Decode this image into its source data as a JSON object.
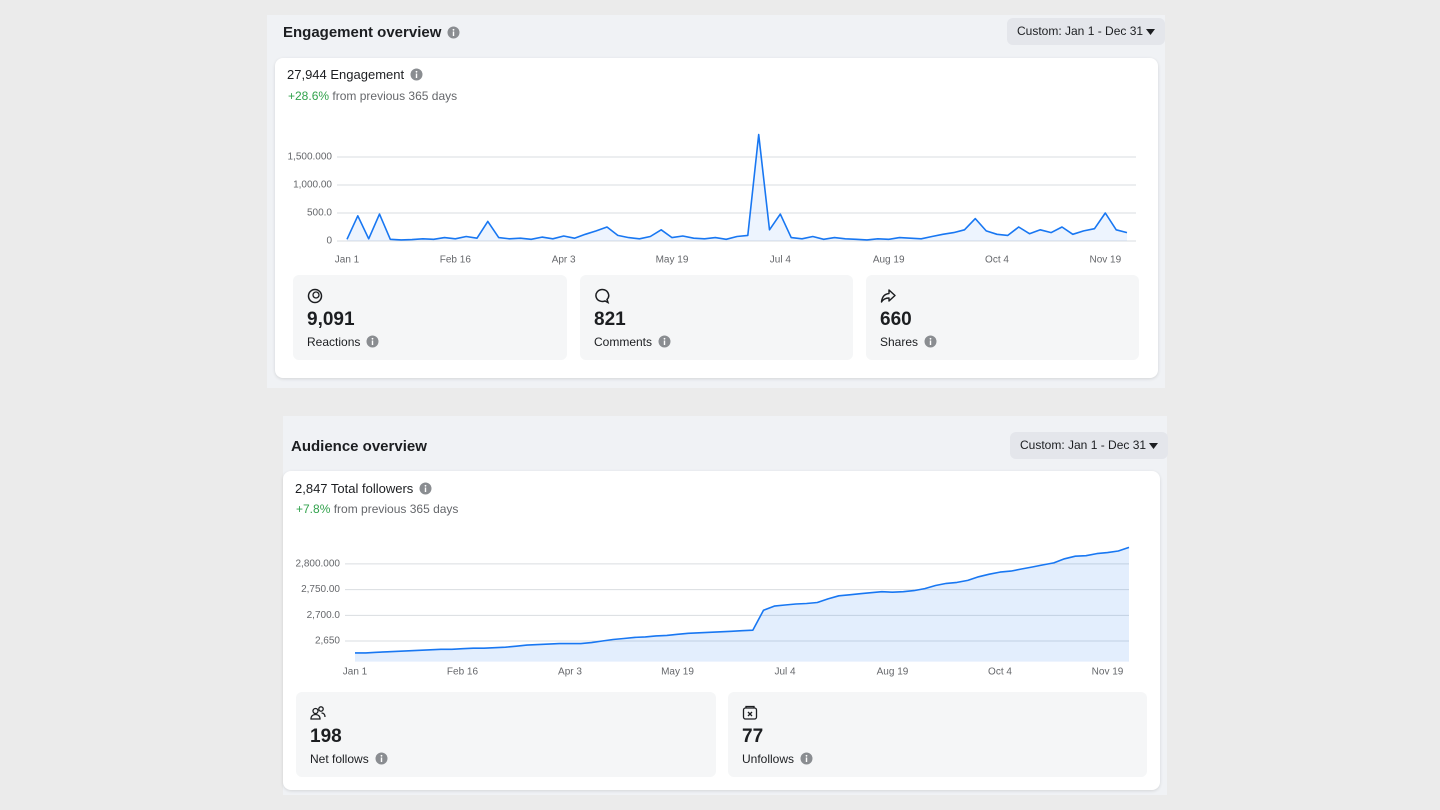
{
  "engagement": {
    "title": "Engagement overview",
    "range_button": "Custom: Jan 1 - Dec 31",
    "total": "27,944 Engagement",
    "change": "+28.6%",
    "change_text": "from previous 365 days",
    "chart": {
      "type": "line",
      "color": "#1877f2",
      "categories": [
        "Jan 1",
        null,
        null,
        null,
        null,
        null,
        null,
        null,
        null,
        null,
        "Feb 16",
        null,
        null,
        null,
        null,
        null,
        null,
        null,
        null,
        null,
        "Apr 3",
        null,
        null,
        null,
        null,
        null,
        null,
        null,
        null,
        null,
        "May 19",
        null,
        null,
        null,
        null,
        null,
        null,
        null,
        null,
        null,
        "Jul 4",
        null,
        null,
        null,
        null,
        null,
        null,
        null,
        null,
        null,
        "Aug 19",
        null,
        null,
        null,
        null,
        null,
        null,
        null,
        null,
        null,
        "Oct 4",
        null,
        null,
        null,
        null,
        null,
        null,
        null,
        null,
        null,
        "Nov 19",
        null,
        null
      ],
      "values": [
        30,
        450,
        40,
        480,
        30,
        20,
        25,
        40,
        30,
        60,
        40,
        80,
        50,
        350,
        60,
        40,
        50,
        30,
        70,
        40,
        90,
        50,
        120,
        180,
        250,
        100,
        60,
        40,
        80,
        200,
        60,
        90,
        50,
        40,
        60,
        30,
        80,
        100,
        1900,
        200,
        480,
        60,
        40,
        80,
        30,
        60,
        40,
        30,
        20,
        40,
        30,
        60,
        50,
        40,
        80,
        120,
        150,
        200,
        400,
        180,
        120,
        100,
        250,
        130,
        200,
        150,
        250,
        120,
        180,
        220,
        500,
        200,
        150
      ],
      "ylim": [
        0,
        2000
      ],
      "yticks": [
        0,
        {
          "value": 500,
          "label": "500.0"
        },
        {
          "value": 1000,
          "label": "1,000.00"
        },
        {
          "value": 1500,
          "label": "1,500.000"
        }
      ],
      "grid": true
    },
    "metrics": [
      {
        "value": "9,091",
        "label": "Reactions"
      },
      {
        "value": "821",
        "label": "Comments"
      },
      {
        "value": "660",
        "label": "Shares"
      }
    ]
  },
  "audience": {
    "title": "Audience overview",
    "range_button": "Custom: Jan 1 - Dec 31",
    "total": "2,847 Total followers",
    "change": "+7.8%",
    "change_text": "from previous 365 days",
    "chart": {
      "type": "area",
      "color": "#1877f2",
      "categories": [
        "Jan 1",
        null,
        null,
        null,
        null,
        null,
        null,
        null,
        null,
        null,
        "Feb 16",
        null,
        null,
        null,
        null,
        null,
        null,
        null,
        null,
        null,
        "Apr 3",
        null,
        null,
        null,
        null,
        null,
        null,
        null,
        null,
        null,
        "May 19",
        null,
        null,
        null,
        null,
        null,
        null,
        null,
        null,
        null,
        "Jul 4",
        null,
        null,
        null,
        null,
        null,
        null,
        null,
        null,
        null,
        "Aug 19",
        null,
        null,
        null,
        null,
        null,
        null,
        null,
        null,
        null,
        "Oct 4",
        null,
        null,
        null,
        null,
        null,
        null,
        null,
        null,
        null,
        "Nov 19",
        null,
        null
      ],
      "values": [
        2627,
        2627,
        2628,
        2629,
        2630,
        2631,
        2632,
        2633,
        2634,
        2634,
        2635,
        2636,
        2636,
        2637,
        2638,
        2640,
        2642,
        2643,
        2644,
        2645,
        2645,
        2645,
        2647,
        2650,
        2653,
        2655,
        2657,
        2658,
        2660,
        2661,
        2663,
        2665,
        2666,
        2667,
        2668,
        2669,
        2670,
        2671,
        2710,
        2718,
        2720,
        2722,
        2723,
        2725,
        2732,
        2738,
        2740,
        2742,
        2744,
        2746,
        2745,
        2746,
        2748,
        2752,
        2758,
        2762,
        2764,
        2768,
        2775,
        2780,
        2784,
        2786,
        2790,
        2794,
        2798,
        2802,
        2810,
        2815,
        2816,
        2820,
        2822,
        2825,
        2832
      ],
      "ylim": [
        2610,
        2835
      ],
      "yticks": [
        {
          "value": 2650,
          "label": "2,650"
        },
        {
          "value": 2700,
          "label": "2,700.0"
        },
        {
          "value": 2750,
          "label": "2,750.00"
        },
        {
          "value": 2800,
          "label": "2,800.000"
        }
      ],
      "grid": true
    },
    "metrics": [
      {
        "value": "198",
        "label": "Net follows"
      },
      {
        "value": "77",
        "label": "Unfollows"
      }
    ]
  }
}
